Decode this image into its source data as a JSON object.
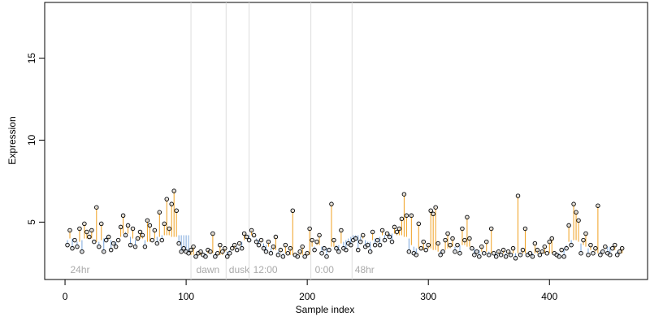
{
  "chart_data": {
    "type": "scatter",
    "xlabel": "Sample index",
    "ylabel": "Expression",
    "xlim": [
      -16.8,
      481
    ],
    "ylim": [
      1.5,
      18.4
    ],
    "xticks": [
      0,
      100,
      200,
      300,
      400
    ],
    "yticks": [
      5,
      10,
      15
    ],
    "point_color": "#000000",
    "above_color": "#f0a020",
    "below_color": "#7aa6dc",
    "phase_line_color": "#dddddd",
    "phase_lines": [
      104,
      133,
      152,
      203,
      237
    ],
    "annotations": [
      {
        "text": "24hr",
        "x": 3
      },
      {
        "text": "dawn",
        "x": 107
      },
      {
        "text": "dusk",
        "x": 134
      },
      {
        "text": "12:00",
        "x": 154
      },
      {
        "text": "0:00",
        "x": 205
      },
      {
        "text": "48hr",
        "x": 238
      }
    ],
    "x": [
      2,
      4,
      6,
      8,
      10,
      12,
      14,
      16,
      18,
      20,
      22,
      24,
      26,
      28,
      30,
      32,
      34,
      36,
      38,
      40,
      42,
      44,
      46,
      48,
      50,
      52,
      54,
      56,
      58,
      60,
      62,
      64,
      66,
      68,
      70,
      72,
      74,
      76,
      78,
      80,
      82,
      84,
      86,
      88,
      90,
      92,
      94,
      96,
      98,
      100,
      102,
      104,
      106,
      108,
      110,
      112,
      114,
      116,
      118,
      120,
      122,
      124,
      126,
      128,
      130,
      132,
      134,
      136,
      138,
      140,
      142,
      144,
      146,
      148,
      150,
      152,
      154,
      156,
      158,
      160,
      162,
      164,
      166,
      168,
      170,
      172,
      174,
      176,
      178,
      180,
      182,
      184,
      186,
      188,
      190,
      192,
      194,
      196,
      198,
      200,
      202,
      204,
      206,
      208,
      210,
      212,
      214,
      216,
      218,
      220,
      222,
      224,
      226,
      228,
      230,
      232,
      234,
      236,
      238,
      240,
      242,
      244,
      246,
      248,
      250,
      252,
      254,
      256,
      258,
      260,
      262,
      264,
      266,
      268,
      270,
      272,
      274,
      276,
      278,
      280,
      282,
      284,
      286,
      288,
      290,
      292,
      294,
      296,
      298,
      300,
      302,
      304,
      306,
      308,
      310,
      312,
      314,
      316,
      318,
      320,
      322,
      324,
      326,
      328,
      330,
      332,
      334,
      336,
      338,
      340,
      342,
      344,
      346,
      348,
      350,
      352,
      354,
      356,
      358,
      360,
      362,
      364,
      366,
      368,
      370,
      372,
      374,
      376,
      378,
      380,
      382,
      384,
      386,
      388,
      390,
      392,
      394,
      396,
      398,
      400,
      402,
      404,
      406,
      408,
      410,
      412,
      414,
      416,
      418,
      420,
      422,
      424,
      426,
      428,
      430,
      432,
      434,
      436,
      438,
      440,
      442,
      444,
      446,
      448,
      450,
      452,
      454,
      456,
      458,
      460
    ],
    "values": [
      3.6,
      4.5,
      3.4,
      3.9,
      3.5,
      4.6,
      3.2,
      4.9,
      4.4,
      4.1,
      4.5,
      3.8,
      5.9,
      3.5,
      4.9,
      3.2,
      3.9,
      4.1,
      3.3,
      3.7,
      3.5,
      3.9,
      4.7,
      5.4,
      4.2,
      4.8,
      3.6,
      4.6,
      3.5,
      4.0,
      4.4,
      4.2,
      3.5,
      5.1,
      4.8,
      3.9,
      4.5,
      3.7,
      5.6,
      3.9,
      4.9,
      6.4,
      4.6,
      6.1,
      6.9,
      5.7,
      3.7,
      3.2,
      3.4,
      3.2,
      3.1,
      3.3,
      3.5,
      2.9,
      3.1,
      3.2,
      3.0,
      2.9,
      3.3,
      3.2,
      4.3,
      2.9,
      3.1,
      3.6,
      3.2,
      3.4,
      2.9,
      3.1,
      3.4,
      3.6,
      3.3,
      3.7,
      3.4,
      4.3,
      4.1,
      3.9,
      4.5,
      4.2,
      3.8,
      3.6,
      3.9,
      3.4,
      3.2,
      3.8,
      3.1,
      3.5,
      4.1,
      3.0,
      3.3,
      2.9,
      3.6,
      3.1,
      3.4,
      5.7,
      3.0,
      2.9,
      3.2,
      3.5,
      2.9,
      3.1,
      4.6,
      3.9,
      3.3,
      3.8,
      4.2,
      3.1,
      3.4,
      2.9,
      3.3,
      6.1,
      3.9,
      3.4,
      3.2,
      4.5,
      3.4,
      3.3,
      3.7,
      3.6,
      3.9,
      4.0,
      3.3,
      3.8,
      4.2,
      3.5,
      3.6,
      3.2,
      4.4,
      3.6,
      3.9,
      3.6,
      4.5,
      3.9,
      4.3,
      4.1,
      3.8,
      4.7,
      4.4,
      4.6,
      5.2,
      6.7,
      5.4,
      3.2,
      5.4,
      3.1,
      3.0,
      4.9,
      3.4,
      3.8,
      3.3,
      3.6,
      5.7,
      5.5,
      5.9,
      3.7,
      3.0,
      3.2,
      3.9,
      4.3,
      3.6,
      4.0,
      3.2,
      3.6,
      3.1,
      4.6,
      3.9,
      5.3,
      4.0,
      3.4,
      3.0,
      3.2,
      2.9,
      3.5,
      3.1,
      3.8,
      3.0,
      4.6,
      3.1,
      2.9,
      3.2,
      3.0,
      3.3,
      2.9,
      3.2,
      3.0,
      3.4,
      2.8,
      6.6,
      3.0,
      3.3,
      4.6,
      3.0,
      3.1,
      2.9,
      3.7,
      3.3,
      3.0,
      3.2,
      3.5,
      3.1,
      3.8,
      4.0,
      3.1,
      3.0,
      2.9,
      3.3,
      2.9,
      3.4,
      4.8,
      3.6,
      6.1,
      5.6,
      5.1,
      3.1,
      3.9,
      4.3,
      3.0,
      3.6,
      3.1,
      3.4,
      6.0,
      3.0,
      3.2,
      3.5,
      3.1,
      3.0,
      3.4,
      3.6,
      3.0,
      3.2,
      3.4
    ],
    "fitted": [
      3.9,
      4.0,
      4.0,
      3.9,
      3.8,
      3.8,
      3.9,
      4.0,
      4.0,
      4.0,
      4.0,
      3.9,
      3.8,
      3.8,
      3.9,
      4.0,
      4.1,
      4.0,
      3.9,
      3.8,
      3.8,
      3.9,
      4.1,
      4.3,
      4.4,
      4.3,
      4.1,
      4.0,
      3.9,
      3.9,
      4.0,
      4.0,
      3.9,
      3.8,
      3.8,
      3.9,
      4.0,
      4.1,
      4.1,
      4.2,
      4.2,
      4.2,
      4.2,
      4.1,
      4.1,
      4.1,
      4.2,
      4.2,
      4.2,
      4.2,
      4.2,
      3.0,
      3.0,
      3.0,
      3.0,
      3.0,
      3.0,
      3.1,
      3.1,
      3.1,
      3.1,
      3.1,
      3.0,
      3.0,
      3.0,
      3.2,
      3.2,
      3.3,
      3.3,
      3.4,
      3.5,
      3.6,
      3.8,
      3.9,
      4.0,
      4.2,
      4.2,
      4.1,
      4.0,
      3.9,
      3.8,
      3.7,
      3.6,
      3.5,
      3.4,
      3.3,
      3.3,
      3.2,
      3.2,
      3.1,
      3.1,
      3.0,
      3.0,
      3.0,
      3.0,
      3.0,
      3.0,
      3.0,
      3.0,
      3.0,
      3.0,
      3.5,
      3.5,
      3.6,
      3.6,
      3.5,
      3.5,
      3.4,
      3.4,
      3.5,
      3.5,
      3.6,
      3.6,
      3.7,
      3.8,
      3.9,
      4.0,
      4.1,
      4.2,
      4.2,
      4.2,
      4.1,
      4.0,
      3.9,
      3.8,
      3.8,
      3.9,
      4.0,
      4.0,
      4.1,
      4.2,
      4.2,
      4.2,
      4.3,
      4.3,
      4.3,
      4.2,
      4.2,
      4.2,
      4.1,
      4.1,
      4.0,
      3.6,
      3.5,
      3.4,
      3.4,
      3.3,
      3.3,
      3.4,
      3.4,
      3.4,
      3.3,
      3.3,
      3.2,
      3.2,
      3.3,
      3.3,
      3.4,
      3.4,
      3.5,
      3.5,
      3.5,
      3.6,
      3.6,
      3.6,
      3.5,
      3.5,
      3.4,
      3.4,
      3.3,
      3.3,
      3.2,
      3.2,
      3.2,
      3.2,
      3.1,
      3.1,
      3.1,
      3.1,
      3.1,
      3.1,
      3.1,
      3.1,
      3.1,
      3.1,
      3.1,
      3.1,
      3.1,
      3.1,
      3.1,
      3.1,
      3.1,
      3.1,
      3.1,
      3.1,
      3.1,
      3.1,
      3.1,
      3.1,
      3.1,
      3.1,
      3.1,
      3.1,
      3.1,
      3.2,
      3.4,
      3.6,
      3.8,
      3.9,
      3.9,
      3.9,
      3.8,
      3.7,
      3.6,
      3.5,
      3.4,
      3.3,
      3.2,
      3.2,
      3.1,
      3.2,
      3.3,
      3.4,
      3.5,
      3.5,
      3.4,
      3.3,
      3.2,
      3.1,
      3.1
    ]
  }
}
